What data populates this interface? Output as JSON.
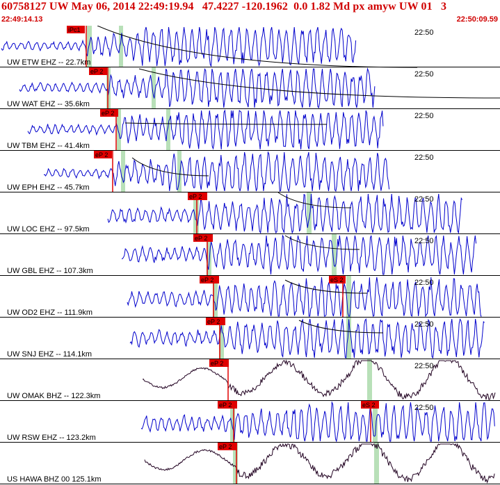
{
  "header": {
    "title": "60758127 UW May 06, 2014 22:49:19.94   47.4227 -120.1962  0.0 1.82 Md px amyw UW 01   3",
    "start_time": "22:49:14.13",
    "end_time": "22:50:09.59"
  },
  "colors": {
    "header_text": "#d00000",
    "trace_short_period": "#0000cc",
    "trace_broadband": "#200020",
    "pick_box": "#e00000",
    "coda_window": "#b8e0b8",
    "decay_curve": "#000000",
    "grid": "#000000"
  },
  "traces": [
    {
      "label": "UW ETW EHZ -- 22.7km",
      "time_label": "22:50",
      "picks": [
        "iPc1"
      ],
      "type": "short-period"
    },
    {
      "label": "UW WAT EHZ -- 35.6km",
      "time_label": "22:50",
      "picks": [
        "eP 2"
      ],
      "type": "short-period"
    },
    {
      "label": "UW TBM EHZ -- 41.4km",
      "time_label": "22:50",
      "picks": [
        "eP 2"
      ],
      "type": "short-period"
    },
    {
      "label": "UW EPH EHZ -- 45.7km",
      "time_label": "22:50",
      "picks": [
        "eP 2"
      ],
      "type": "short-period"
    },
    {
      "label": "UW LOC EHZ -- 97.5km",
      "time_label": "22:50",
      "picks": [
        "eP 2"
      ],
      "type": "short-period"
    },
    {
      "label": "UW GBL EHZ -- 107.3km",
      "time_label": "22:50",
      "picks": [
        "eP 2"
      ],
      "type": "short-period"
    },
    {
      "label": "UW OD2 EHZ -- 111.9km",
      "time_label": "22:50",
      "picks": [
        "eP 2",
        "eS 2"
      ],
      "type": "short-period"
    },
    {
      "label": "UW SNJ EHZ -- 114.1km",
      "time_label": "22:50",
      "picks": [
        "eP 2"
      ],
      "type": "short-period"
    },
    {
      "label": "UW OMAK BHZ -- 122.3km",
      "time_label": "22:50",
      "picks": [
        "eP 2"
      ],
      "type": "broadband"
    },
    {
      "label": "UW RSW EHZ -- 123.2km",
      "time_label": "22:50",
      "picks": [
        "eP 2",
        "eS 2"
      ],
      "type": "short-period"
    },
    {
      "label": "US HAWA BHZ 00 125.1km",
      "time_label": "",
      "picks": [
        "eP 2"
      ],
      "type": "broadband"
    }
  ]
}
